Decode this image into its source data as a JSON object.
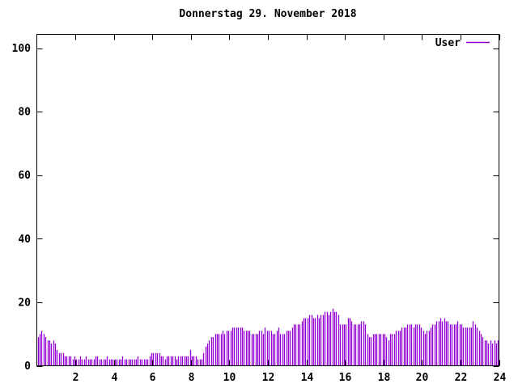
{
  "window": {
    "background": "#ffffff",
    "foreground": "#000000"
  },
  "chart_data": {
    "type": "bar",
    "style": "impulses",
    "title": "Donnerstag 29. November 2018",
    "legend": {
      "label": "User",
      "position": "top-right-inside",
      "sample": "line"
    },
    "series_color": "#9400d3",
    "axes": {
      "xlim": [
        0,
        24
      ],
      "ylim": [
        0,
        100
      ],
      "xticks": [
        2,
        4,
        6,
        8,
        10,
        12,
        14,
        16,
        18,
        20,
        22,
        24
      ],
      "yticks": [
        0,
        20,
        40,
        60,
        80,
        100
      ],
      "grid": false,
      "tick_style": "inward-mirrored",
      "x_unit": "hour-of-day"
    },
    "x_start": 0.05,
    "x_step": 0.1,
    "values": [
      9,
      10,
      11,
      10,
      9,
      8,
      8,
      7,
      8,
      7,
      5,
      4,
      4,
      4,
      3,
      3,
      3,
      3,
      2,
      3,
      2,
      2,
      3,
      2,
      2,
      3,
      2,
      2,
      2,
      2,
      3,
      3,
      2,
      2,
      2,
      2,
      3,
      2,
      2,
      2,
      2,
      2,
      2,
      2,
      3,
      2,
      2,
      2,
      2,
      2,
      2,
      2,
      3,
      2,
      2,
      2,
      2,
      2,
      3,
      4,
      4,
      4,
      4,
      4,
      3,
      3,
      2,
      3,
      3,
      3,
      3,
      3,
      2,
      3,
      3,
      3,
      3,
      3,
      3,
      5,
      3,
      3,
      3,
      2,
      2,
      2,
      4,
      6,
      7,
      8,
      9,
      9,
      10,
      10,
      10,
      10,
      11,
      10,
      11,
      11,
      11,
      12,
      12,
      12,
      12,
      12,
      12,
      11,
      11,
      11,
      11,
      10,
      10,
      10,
      10,
      11,
      11,
      10,
      12,
      11,
      11,
      11,
      10,
      10,
      11,
      12,
      10,
      10,
      10,
      11,
      11,
      11,
      12,
      13,
      13,
      13,
      13,
      14,
      15,
      15,
      15,
      16,
      16,
      15,
      15,
      16,
      15,
      16,
      16,
      17,
      17,
      16,
      17,
      18,
      17,
      17,
      16,
      13,
      13,
      13,
      13,
      15,
      15,
      14,
      13,
      13,
      13,
      13,
      14,
      14,
      13,
      10,
      9,
      9,
      10,
      10,
      10,
      10,
      10,
      10,
      10,
      9,
      8,
      10,
      10,
      10,
      11,
      11,
      11,
      12,
      12,
      12,
      13,
      13,
      13,
      12,
      13,
      13,
      13,
      12,
      11,
      10,
      11,
      11,
      12,
      13,
      13,
      14,
      14,
      15,
      14,
      15,
      14,
      14,
      13,
      13,
      13,
      13,
      14,
      13,
      13,
      12,
      12,
      12,
      12,
      12,
      14,
      13,
      12,
      11,
      10,
      9,
      8,
      8,
      7,
      8,
      7,
      8,
      7,
      8
    ]
  }
}
